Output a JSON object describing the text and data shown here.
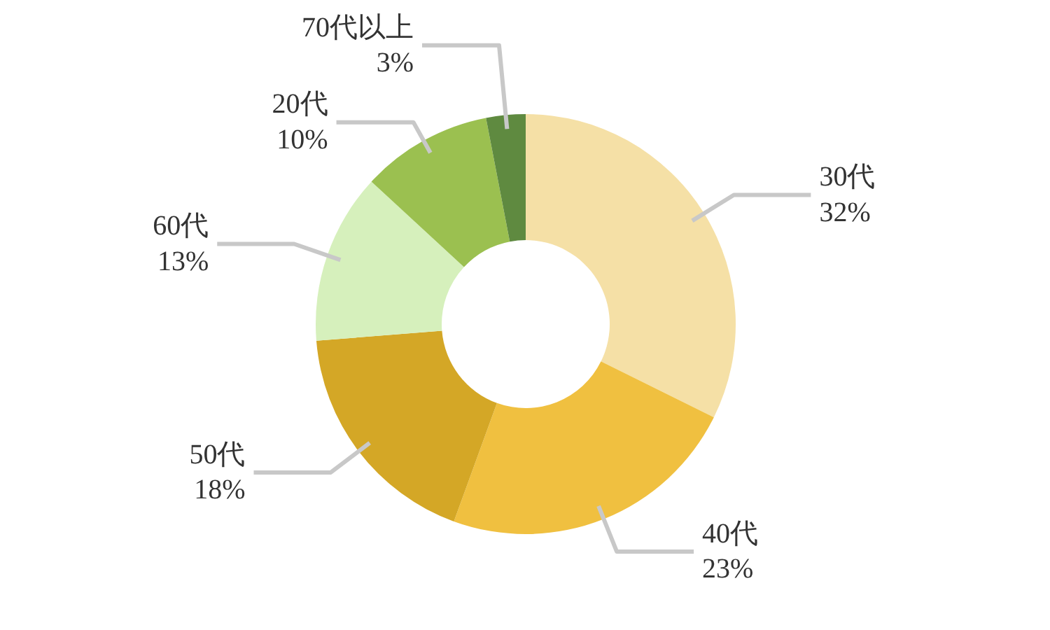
{
  "chart_data": {
    "type": "donut",
    "categories": [
      "30代",
      "40代",
      "50代",
      "60代",
      "20代",
      "70代以上"
    ],
    "values": [
      32,
      23,
      18,
      13,
      10,
      3
    ],
    "value_labels": [
      "32%",
      "23%",
      "18%",
      "13%",
      "10%",
      "3%"
    ],
    "colors": [
      "#f5e0a6",
      "#f0c040",
      "#d4a726",
      "#d6f0bc",
      "#9bc050",
      "#5f8a40"
    ],
    "legend": false
  }
}
